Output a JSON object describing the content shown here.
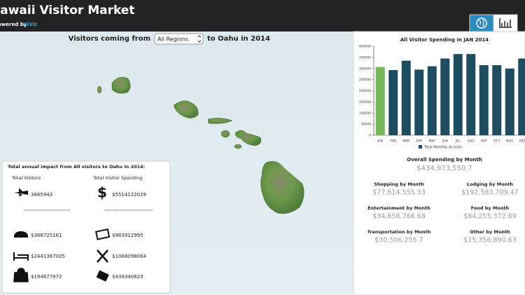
{
  "header": {
    "title": "Hawaii Visitor Market",
    "powered_by": "Powered by",
    "brand": "HiViz"
  },
  "map": {
    "title_before": "Visitors coming from",
    "region_select": "All Regions",
    "title_after": "to Oahu in 2014"
  },
  "impact": {
    "title": "Total annual impact from All visitors to Oahu in 2014:",
    "visitors_label": "Total Visitors",
    "spending_label": "Total Visitor Spending",
    "visitors": "3885943",
    "spending": "$5514122029",
    "items": [
      "$386725161",
      "$983912995",
      "$2441367005",
      "$1068098064",
      "$194677972",
      "$439340829"
    ]
  },
  "chart_data": {
    "type": "bar",
    "title": "All Visitor Spending in JAN 2014",
    "categories": [
      "JAN",
      "FEB",
      "MAR",
      "APR",
      "MAY",
      "JUN",
      "JUL",
      "AUG",
      "SEP",
      "OCT",
      "NOV",
      "DEC"
    ],
    "series": [
      {
        "name": "Total Monthly Arrivals",
        "color": "#1d4d5e",
        "values": [
          307000,
          293000,
          335000,
          295000,
          310000,
          345000,
          365000,
          365000,
          315000,
          315000,
          300000,
          345000
        ]
      }
    ],
    "bar_colors": [
      "#7ab55c",
      "#1d4d5e",
      "#1d4d5e",
      "#1d4d5e",
      "#1d4d5e",
      "#1d4d5e",
      "#1d4d5e",
      "#1d4d5e",
      "#1d4d5e",
      "#1d4d5e",
      "#1d4d5e",
      "#1d4d5e"
    ],
    "ylim": [
      0,
      400000
    ],
    "yticks": [
      0,
      50000,
      100000,
      150000,
      200000,
      250000,
      300000,
      350000,
      400000
    ],
    "grid": false
  },
  "spending": {
    "overall_label": "Overall Spending by Month",
    "overall": "$434,973,550.7",
    "items": [
      {
        "label": "Shopping by Month",
        "value": "$77,614,555.33"
      },
      {
        "label": "Lodging by Month",
        "value": "$192,583,709.47"
      },
      {
        "label": "Entertainment by Month",
        "value": "$34,656,766.68"
      },
      {
        "label": "Food by Month",
        "value": "$84,255,372.89"
      },
      {
        "label": "Transportation by Month",
        "value": "$30,506,255.7"
      },
      {
        "label": "Other by Month",
        "value": "$15,356,890.63"
      }
    ]
  }
}
